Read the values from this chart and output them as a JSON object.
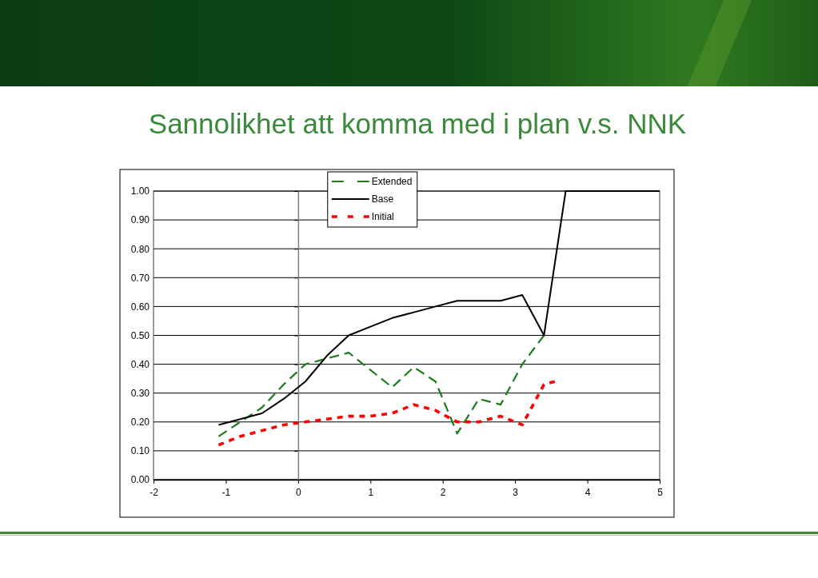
{
  "chart_data": {
    "type": "line",
    "title": "Sannolikhet att komma med i plan v.s. NNK",
    "xlim": [
      -2,
      5
    ],
    "xticks": [
      -2,
      -1,
      0,
      1,
      2,
      3,
      4,
      5
    ],
    "ylim": [
      0,
      1
    ],
    "yticks": [
      {
        "value": 0,
        "label": "0.00"
      },
      {
        "value": 0.1,
        "label": "0.10"
      },
      {
        "value": 0.2,
        "label": "0.20"
      },
      {
        "value": 0.3,
        "label": "0.30"
      },
      {
        "value": 0.4,
        "label": "0.40"
      },
      {
        "value": 0.5,
        "label": "0.50"
      },
      {
        "value": 0.6,
        "label": "0.60"
      },
      {
        "value": 0.7,
        "label": "0.70"
      },
      {
        "value": 0.8,
        "label": "0.80"
      },
      {
        "value": 0.9,
        "label": "0.90"
      },
      {
        "value": 1,
        "label": "1.00"
      }
    ],
    "grid": "y",
    "legend": "top",
    "series": [
      {
        "name": "Extended",
        "color": "#1e7b1e",
        "line_style": "dashed",
        "x": [
          -1.1,
          -0.8,
          -0.5,
          -0.2,
          0.1,
          0.4,
          0.7,
          1.0,
          1.3,
          1.6,
          1.9,
          2.2,
          2.5,
          2.8,
          3.1,
          3.4
        ],
        "values": [
          0.15,
          0.2,
          0.25,
          0.33,
          0.4,
          0.42,
          0.44,
          0.38,
          0.32,
          0.39,
          0.34,
          0.16,
          0.28,
          0.26,
          0.4,
          0.5
        ]
      },
      {
        "name": "Base",
        "color": "#000000",
        "line_style": "solid",
        "x": [
          -1.1,
          -0.8,
          -0.5,
          -0.2,
          0.1,
          0.4,
          0.7,
          1.0,
          1.3,
          1.6,
          1.9,
          2.2,
          2.5,
          2.8,
          3.1,
          3.4,
          3.7,
          5.0
        ],
        "values": [
          0.19,
          0.21,
          0.23,
          0.28,
          0.34,
          0.43,
          0.5,
          0.53,
          0.56,
          0.58,
          0.6,
          0.62,
          0.62,
          0.62,
          0.64,
          0.5,
          1.0,
          1.0
        ]
      },
      {
        "name": "Initial",
        "color": "#ff0000",
        "line_style": "dotted",
        "x": [
          -1.1,
          -0.8,
          -0.5,
          -0.2,
          0.1,
          0.4,
          0.7,
          1.0,
          1.3,
          1.6,
          1.9,
          2.2,
          2.5,
          2.8,
          3.1,
          3.4,
          3.55
        ],
        "values": [
          0.12,
          0.15,
          0.17,
          0.19,
          0.2,
          0.21,
          0.22,
          0.22,
          0.23,
          0.26,
          0.24,
          0.2,
          0.2,
          0.22,
          0.19,
          0.33,
          0.34
        ]
      }
    ]
  }
}
